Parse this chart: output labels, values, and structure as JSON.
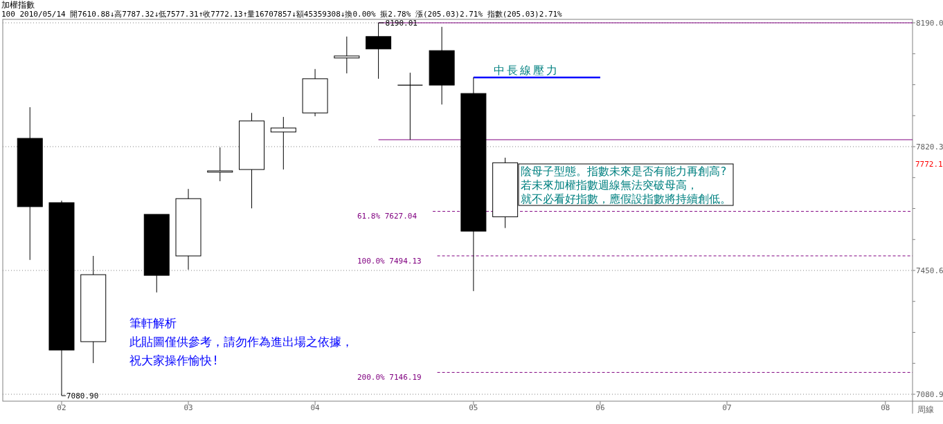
{
  "chart_data": {
    "type": "candlestick",
    "title": "加權指數",
    "subtitle": "100 2010/05/14 開7610.88↓高7787.32↓低7577.31↑收7772.13↑量16707857↓額45359308↓換0.00% 振2.78% 漲(205.03)2.71% 指數(205.03)2.71%",
    "x": [
      "2010-01-29",
      "2010-02-05",
      "2010-02-12",
      "2010-02-26",
      "2010-03-05",
      "2010-03-12",
      "2010-03-19",
      "2010-03-26",
      "2010-04-02",
      "2010-04-09",
      "2010-04-16",
      "2010-04-23",
      "2010-04-30",
      "2010-05-07",
      "2010-05-14"
    ],
    "ohlc": [
      [
        7845,
        7938,
        7482,
        7641
      ],
      [
        7653,
        7659,
        7080.9,
        7213
      ],
      [
        7238,
        7494,
        7174,
        7438
      ],
      [
        7618,
        7618,
        7385,
        7436
      ],
      [
        7494,
        7694,
        7453,
        7665
      ],
      [
        7744,
        7818,
        7717,
        7748
      ],
      [
        7752,
        7921,
        7636,
        7897
      ],
      [
        7864,
        7909,
        7752,
        7876
      ],
      [
        7921,
        8052,
        7911,
        8023
      ],
      [
        8085,
        8149,
        8039,
        8091
      ],
      [
        8149,
        8190.01,
        8023,
        8112
      ],
      [
        8004,
        8041,
        7841,
        8004
      ],
      [
        8107,
        8178,
        7946,
        8004
      ],
      [
        7979,
        8027,
        7389,
        7568
      ],
      [
        7610.88,
        7787.32,
        7577.31,
        7772.13
      ]
    ],
    "series": [
      {
        "type": "line",
        "x": [
          "2010-04-16",
          "2010-08-12"
        ],
        "values": [
          8190.01,
          8190.01
        ],
        "color": "#800080",
        "line_style": "solid"
      },
      {
        "type": "line",
        "x": [
          "2010-04-16",
          "2010-08-12"
        ],
        "values": [
          7841,
          7841
        ],
        "color": "#800080",
        "line_style": "solid"
      },
      {
        "type": "line",
        "x": [
          "2010-05-07",
          "2010-06-04"
        ],
        "values": [
          8027,
          8027
        ],
        "color": "#0000ff",
        "line_style": "solid"
      },
      {
        "type": "line",
        "x": [
          "2010-04-28",
          "2010-08-12"
        ],
        "values": [
          7627.04,
          7627.04
        ],
        "color": "#800080",
        "line_style": "dashed"
      },
      {
        "type": "line",
        "x": [
          "2010-04-29",
          "2010-08-12"
        ],
        "values": [
          7494.13,
          7494.13
        ],
        "color": "#800080",
        "line_style": "dashed"
      },
      {
        "type": "line",
        "x": [
          "2010-04-29",
          "2010-08-12"
        ],
        "values": [
          7146.19,
          7146.19
        ],
        "color": "#800080",
        "line_style": "dashed"
      }
    ],
    "xlim": [
      "2010-01-23",
      "2010-08-12"
    ],
    "xticks": [
      {
        "value": "2010-02-05",
        "label": "02"
      },
      {
        "value": "2010-03-05",
        "label": "03"
      },
      {
        "value": "2010-04-02",
        "label": "04"
      },
      {
        "value": "2010-05-07",
        "label": "05"
      },
      {
        "value": "2010-06-04",
        "label": "06"
      },
      {
        "value": "2010-07-02",
        "label": "07"
      },
      {
        "value": "2010-08-06",
        "label": "08"
      }
    ],
    "ylim": [
      7060.3,
      8200.3
    ],
    "yticks": [
      {
        "value": 8190.0,
        "label": "8190.0"
      },
      {
        "value": 8097.6,
        "label": null
      },
      {
        "value": 8005.2,
        "label": null
      },
      {
        "value": 7912.8,
        "label": null
      },
      {
        "value": 7820.3,
        "label": "7820.3"
      },
      {
        "value": 7727.9,
        "label": null
      },
      {
        "value": 7635.5,
        "label": null
      },
      {
        "value": 7543.0,
        "label": null
      },
      {
        "value": 7450.6,
        "label": "7450.6"
      },
      {
        "value": 7358.2,
        "label": null
      },
      {
        "value": 7265.7,
        "label": null
      },
      {
        "value": 7173.3,
        "label": null
      },
      {
        "value": 7080.9,
        "label": "7080.9"
      }
    ],
    "grid": "y",
    "annotations": [
      {
        "text": "8190.01",
        "x": "2010-04-16",
        "y": 8190.01
      },
      {
        "text": "7080.90",
        "x": "2010-02-05",
        "y": 7080.9
      },
      "61.8% 7627.04",
      "100.0% 7494.13",
      "200.0% 7146.19",
      "中長線壓力",
      "7772.1",
      "陰母子型態。指數未來是否有能力再創高?",
      "若未來加權指數週線無法突破母高，",
      "就不必看好指數，應假設指數將持續創低。",
      "筆軒解析",
      "此貼圖僅供參考，請勿作為進出場之依據，",
      "祝大家操作愉快!",
      "周線"
    ]
  }
}
